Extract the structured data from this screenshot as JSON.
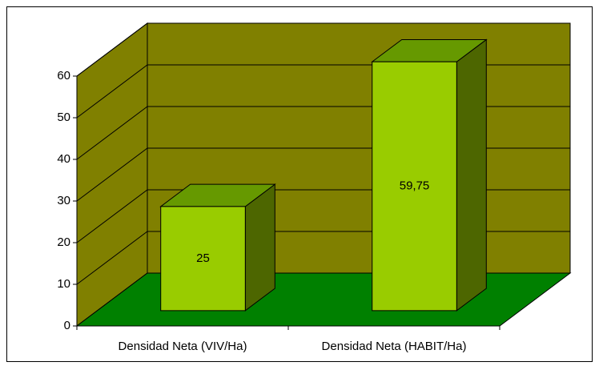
{
  "chart_data": {
    "type": "bar3d",
    "categories": [
      "Densidad Neta (VIV/Ha)",
      "Densidad Neta (HABIT/Ha)"
    ],
    "values": [
      25,
      59.75
    ],
    "value_labels": [
      "25",
      "59,75"
    ],
    "color": "#99cc00",
    "ylim": [
      0,
      60
    ],
    "yticks": [
      0,
      10,
      20,
      30,
      40,
      50,
      60
    ],
    "grid": true
  }
}
